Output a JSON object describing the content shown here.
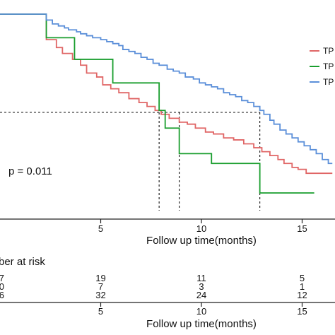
{
  "chart_data": {
    "type": "line",
    "subtype": "kaplan-meier",
    "xlabel": "Follow up time(months)",
    "ylabel": "",
    "x_ticks": [
      5,
      10,
      15
    ],
    "xlim": [
      0,
      16.5
    ],
    "ylim": [
      0,
      1
    ],
    "annotation": "p = 0.011",
    "legend": {
      "placement": "right",
      "entries": [
        {
          "label": "TP",
          "color": "#e06666"
        },
        {
          "label": "TP",
          "color": "#1a9e2e"
        },
        {
          "label": "TP",
          "color": "#5b8fd9"
        }
      ]
    },
    "series": [
      {
        "color": "#e06666",
        "x": [
          0,
          2.3,
          2.3,
          2.8,
          3.1,
          3.6,
          4.0,
          4.3,
          4.8,
          5.1,
          5.5,
          5.9,
          6.4,
          6.9,
          7.3,
          7.7,
          8.0,
          8.4,
          8.9,
          9.3,
          9.7,
          10.2,
          10.6,
          11.1,
          11.6,
          12.1,
          12.6,
          13.0,
          13.4,
          13.8,
          14.1,
          14.5,
          14.8,
          15.2,
          16.5
        ],
        "y": [
          1.0,
          1.0,
          0.87,
          0.83,
          0.8,
          0.77,
          0.74,
          0.7,
          0.68,
          0.64,
          0.62,
          0.6,
          0.57,
          0.55,
          0.53,
          0.51,
          0.49,
          0.47,
          0.45,
          0.44,
          0.42,
          0.4,
          0.39,
          0.37,
          0.36,
          0.34,
          0.32,
          0.3,
          0.28,
          0.26,
          0.24,
          0.22,
          0.21,
          0.19,
          0.19
        ]
      },
      {
        "color": "#1a9e2e",
        "x": [
          0,
          2.3,
          2.3,
          3.7,
          3.7,
          5.6,
          5.6,
          7.9,
          7.9,
          8.2,
          8.2,
          8.9,
          8.9,
          10.5,
          10.5,
          12.9,
          12.9,
          15.6
        ],
        "y": [
          1.0,
          1.0,
          0.88,
          0.88,
          0.77,
          0.77,
          0.65,
          0.65,
          0.51,
          0.51,
          0.42,
          0.42,
          0.29,
          0.29,
          0.24,
          0.24,
          0.09,
          0.09
        ]
      },
      {
        "color": "#5b8fd9",
        "x": [
          0,
          2.3,
          2.3,
          2.6,
          2.9,
          3.2,
          3.4,
          3.8,
          4.0,
          4.3,
          4.6,
          5.0,
          5.3,
          5.6,
          5.9,
          6.1,
          6.4,
          6.7,
          7.0,
          7.3,
          7.6,
          7.9,
          8.3,
          8.6,
          8.9,
          9.2,
          9.6,
          9.9,
          10.2,
          10.5,
          10.8,
          11.1,
          11.4,
          11.7,
          12.0,
          12.3,
          12.6,
          12.9,
          13.1,
          13.4,
          13.6,
          13.9,
          14.2,
          14.5,
          14.8,
          15.1,
          15.4,
          15.7,
          16.0,
          16.3,
          16.5
        ],
        "y": [
          1.0,
          1.0,
          0.97,
          0.95,
          0.94,
          0.93,
          0.92,
          0.91,
          0.9,
          0.89,
          0.88,
          0.87,
          0.86,
          0.85,
          0.84,
          0.82,
          0.81,
          0.8,
          0.78,
          0.77,
          0.75,
          0.74,
          0.72,
          0.71,
          0.7,
          0.68,
          0.67,
          0.65,
          0.64,
          0.63,
          0.62,
          0.6,
          0.59,
          0.58,
          0.56,
          0.55,
          0.53,
          0.51,
          0.49,
          0.46,
          0.44,
          0.41,
          0.39,
          0.37,
          0.35,
          0.33,
          0.31,
          0.29,
          0.26,
          0.24,
          0.24
        ]
      }
    ],
    "median_survival": {
      "y": 0.5,
      "x_markers": [
        7.9,
        8.9,
        12.9
      ]
    },
    "risk_table": {
      "title": "ber at risk",
      "rows": [
        [
          "7",
          "19",
          "11",
          "5"
        ],
        [
          "0",
          "7",
          "3",
          "1"
        ],
        [
          "6",
          "32",
          "24",
          "12"
        ]
      ],
      "columns_x": [
        0,
        5,
        10,
        15
      ]
    }
  }
}
